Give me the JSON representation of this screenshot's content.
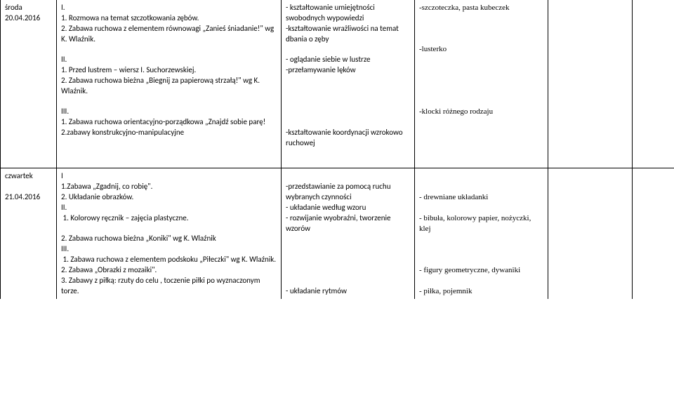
{
  "row1": {
    "dateLabel": "środa\n20.04.2016",
    "activities": "I.\n1. Rozmowa na temat szczotkowania zębów.\n2. Zabawa ruchowa z elementem równowagi „Zanieś śniadanie!\" wg K. Wlaźnik.\n\nII.\n1. Przed lustrem – wiersz I. Suchorzewskiej.\n2. Zabawa ruchowa bieżna „Biegnij za papierową strzałą!\" wg K. Wlaźnik.\n\nIII.\n1. Zabawa ruchowa orientacyjno-porządkowa „Znajdź sobie parę!\n2.zabawy konstrukcyjno-manipulacyjne",
    "goals": "- kształtowanie umiejętności swobodnych wypowiedzi\n-kształtowanie wrażliwości na temat dbania o zęby\n\n- oglądanie siebie w lustrze\n-przełamywanie lęków\n\n\n\n\n\n-kształtowanie koordynacji wzrokowo ruchowej",
    "materials": "-szczoteczka, pasta kubeczek\n\n\n\n-lusterko\n\n\n\n\n\n-klocki różnego rodzaju"
  },
  "row2": {
    "dateLabel": "czwartek\n\n21.04.2016",
    "activities": "I\n1.Zabawa „Zgadnij, co robię\".\n2. Układanie obrazków.\nII.\n 1. Kolorowy ręcznik – zajęcia plastyczne.\n\n2. Zabawa ruchowa bieżna „Koniki\" wg K. Wlaźnik\nIII.\n 1. Zabawa ruchowa z elementem podskoku „Piłeczki\" wg K. Wlaźnik.\n2. Zabawa „Obrazki z mozaiki\".\n3. Zabawy z piłką: rzuty do celu , toczenie piłki po wyznaczonym torze.",
    "goals": "\n-przedstawianie za pomocą ruchu wybranych czynności\n- układanie według wzoru\n- rozwijanie wyobraźni, tworzenie wzorów\n\n\n\n\n\n- układanie rytmów",
    "materials": "\n\n- drewniane układanki\n\n- bibuła, kolorowy papier, nożyczki, klej\n\n\n\n- figury geometryczne, dywaniki\n\n- piłka, pojemnik"
  }
}
